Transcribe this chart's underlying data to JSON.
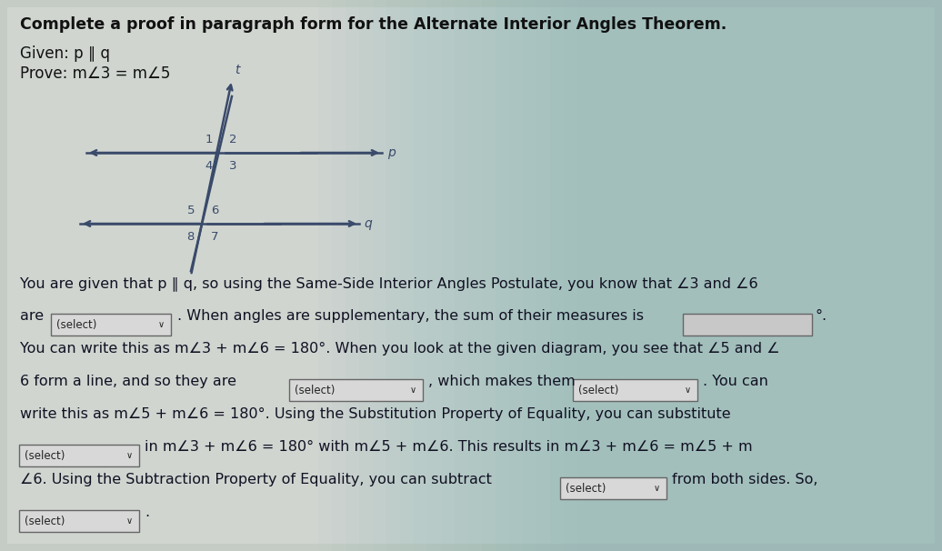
{
  "title": "Complete a proof in paragraph form for the Alternate Interior Angles Theorem.",
  "given": "Given: p ∥ q",
  "prove": "Prove: m∠3 = m∠5",
  "bg_left_color": "#d8d8d8",
  "bg_right_color": "#a0c4c4",
  "text_color": "#111111",
  "dark_text_color": "#1a2a4a",
  "diagram": {
    "t_label": "t",
    "p_label": "p",
    "q_label": "q"
  },
  "select_box_color": "#e8e8e8",
  "select_box_border": "#888888",
  "input_box_color": "#cccccc",
  "input_box_border": "#888888"
}
